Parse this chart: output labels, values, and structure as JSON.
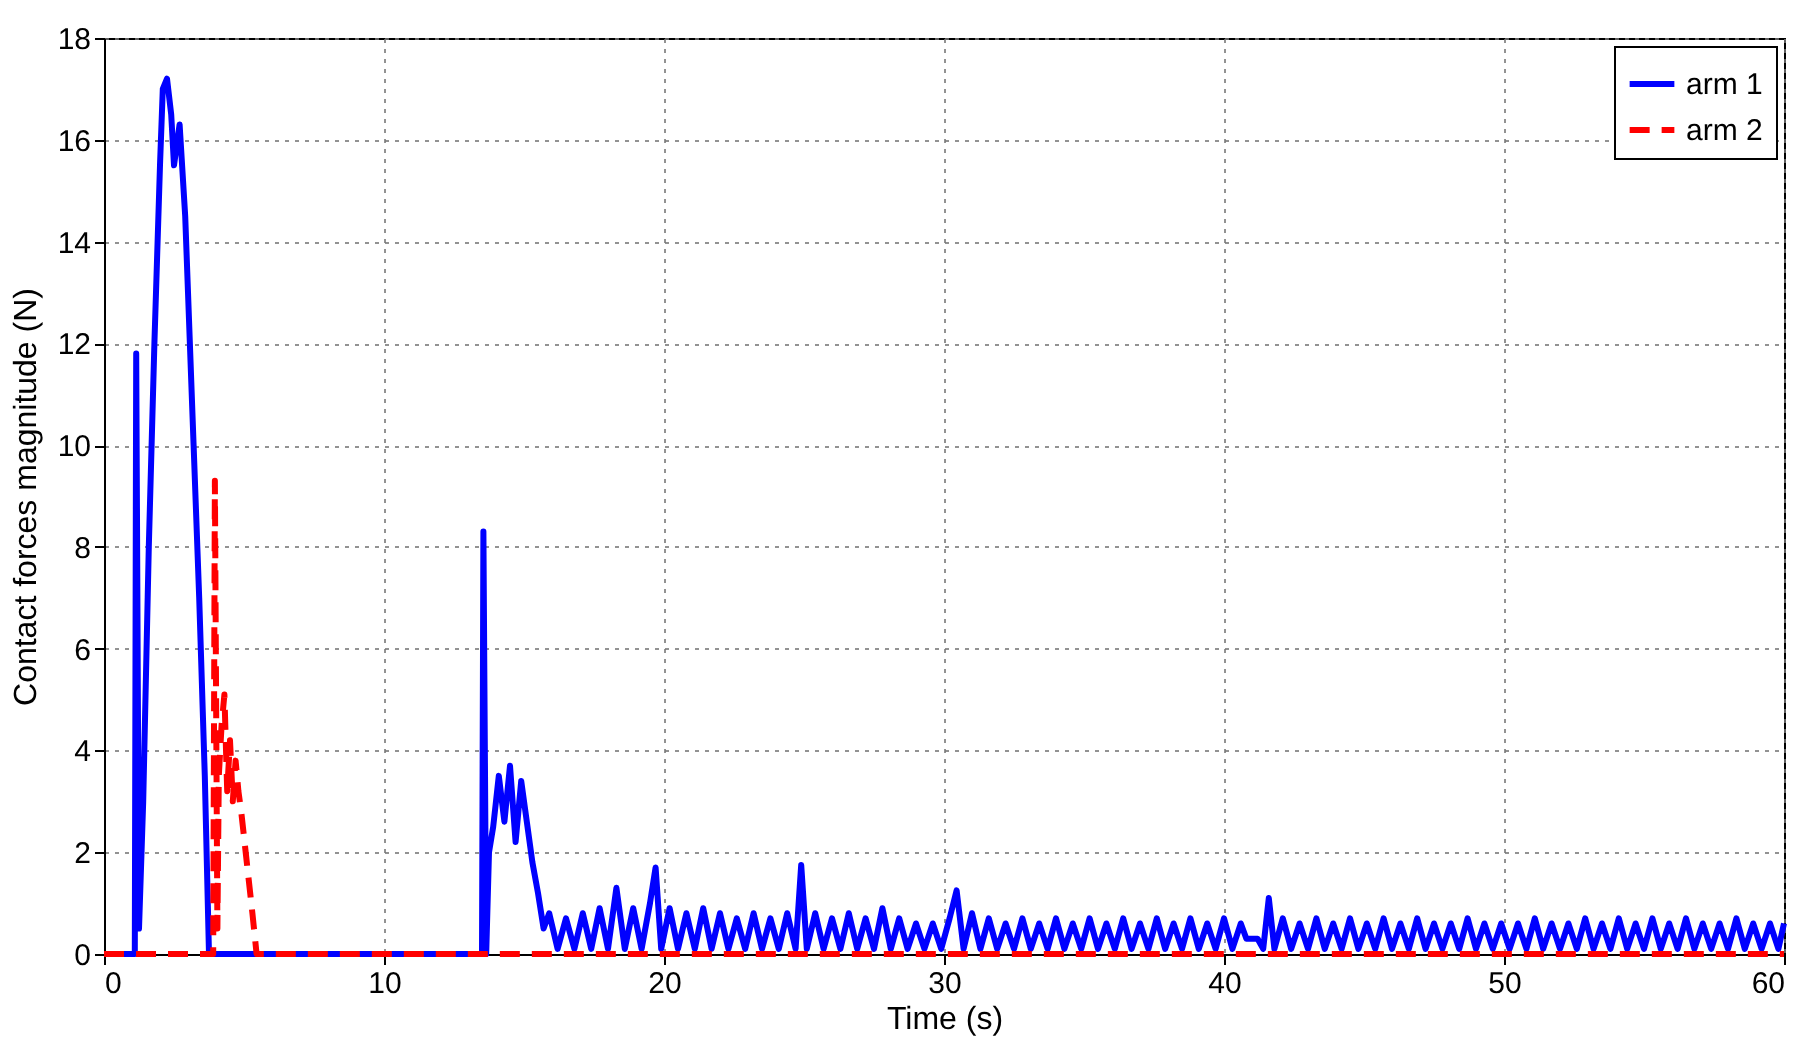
{
  "chart_data": {
    "type": "line",
    "xlabel": "Time (s)",
    "ylabel": "Contact forces magnitude (N)",
    "xlim": [
      0,
      60
    ],
    "xticks": [
      0,
      10,
      20,
      30,
      40,
      50,
      60
    ],
    "ylim": [
      0,
      18
    ],
    "yticks": [
      0,
      2,
      4,
      6,
      8,
      10,
      12,
      14,
      16,
      18
    ],
    "grid": true,
    "legend": "top right",
    "series": [
      {
        "name": "arm 1",
        "color": "#0000ff",
        "line_style": "solid",
        "x": [
          0,
          1.1,
          1.15,
          1.25,
          1.4,
          1.6,
          1.8,
          2.0,
          2.1,
          2.25,
          2.4,
          2.5,
          2.7,
          2.9,
          3.0,
          3.2,
          3.4,
          3.6,
          3.75,
          13.5,
          13.55,
          13.65,
          13.75,
          13.9,
          14.1,
          14.3,
          14.5,
          14.7,
          14.9,
          15.1,
          15.3,
          15.5,
          15.7,
          15.9,
          16.2,
          16.5,
          16.8,
          17.1,
          17.4,
          17.7,
          18.0,
          18.3,
          18.6,
          18.9,
          19.2,
          19.5,
          19.7,
          19.9,
          20.2,
          20.5,
          20.8,
          21.1,
          21.4,
          21.7,
          22.0,
          22.3,
          22.6,
          22.9,
          23.2,
          23.5,
          23.8,
          24.1,
          24.4,
          24.7,
          24.9,
          25.1,
          25.4,
          25.7,
          26.0,
          26.3,
          26.6,
          26.9,
          27.2,
          27.5,
          27.8,
          28.1,
          28.4,
          28.7,
          29.0,
          29.3,
          29.6,
          29.9,
          30.2,
          30.45,
          30.7,
          31.0,
          31.3,
          31.6,
          31.9,
          32.2,
          32.5,
          32.8,
          33.1,
          33.4,
          33.7,
          34.0,
          34.3,
          34.6,
          34.9,
          35.2,
          35.5,
          35.8,
          36.1,
          36.4,
          36.7,
          37.0,
          37.3,
          37.6,
          37.9,
          38.2,
          38.5,
          38.8,
          39.1,
          39.4,
          39.7,
          40.0,
          40.3,
          40.6,
          40.8,
          41.2,
          41.4,
          41.6,
          41.8,
          42.1,
          42.4,
          42.7,
          43.0,
          43.3,
          43.6,
          43.9,
          44.2,
          44.5,
          44.8,
          45.1,
          45.4,
          45.7,
          46.0,
          46.3,
          46.6,
          46.9,
          47.2,
          47.5,
          47.8,
          48.1,
          48.4,
          48.7,
          49.0,
          49.3,
          49.6,
          49.9,
          50.2,
          50.5,
          50.8,
          51.1,
          51.4,
          51.7,
          52.0,
          52.3,
          52.6,
          52.9,
          53.2,
          53.5,
          53.8,
          54.1,
          54.4,
          54.7,
          55.0,
          55.3,
          55.6,
          55.9,
          56.2,
          56.5,
          56.8,
          57.1,
          57.4,
          57.7,
          58.0,
          58.3,
          58.6,
          58.9,
          59.2,
          59.5,
          59.8,
          60
        ],
        "values": [
          0,
          0,
          11.8,
          0.5,
          3,
          8,
          12,
          15.5,
          17,
          17.2,
          16.5,
          15.5,
          16.3,
          14.5,
          13,
          10,
          7,
          3.5,
          0,
          0,
          8.3,
          0,
          2,
          2.5,
          3.5,
          2.6,
          3.7,
          2.2,
          3.4,
          2.6,
          1.8,
          1.2,
          0.5,
          0.8,
          0.1,
          0.7,
          0.1,
          0.8,
          0.1,
          0.9,
          0.1,
          1.3,
          0.1,
          0.9,
          0.1,
          1.0,
          1.7,
          0.1,
          0.9,
          0.1,
          0.8,
          0.1,
          0.9,
          0.1,
          0.8,
          0.1,
          0.7,
          0.1,
          0.8,
          0.1,
          0.7,
          0.1,
          0.8,
          0.1,
          1.75,
          0.1,
          0.8,
          0.1,
          0.7,
          0.1,
          0.8,
          0.1,
          0.7,
          0.1,
          0.9,
          0.1,
          0.7,
          0.1,
          0.6,
          0.1,
          0.6,
          0.1,
          0.7,
          1.25,
          0.1,
          0.8,
          0.1,
          0.7,
          0.1,
          0.6,
          0.1,
          0.7,
          0.1,
          0.6,
          0.1,
          0.7,
          0.1,
          0.6,
          0.1,
          0.7,
          0.1,
          0.6,
          0.1,
          0.7,
          0.1,
          0.6,
          0.1,
          0.7,
          0.1,
          0.6,
          0.1,
          0.7,
          0.1,
          0.6,
          0.1,
          0.7,
          0.1,
          0.6,
          0.3,
          0.3,
          0.1,
          1.1,
          0.1,
          0.7,
          0.1,
          0.6,
          0.1,
          0.7,
          0.1,
          0.6,
          0.1,
          0.7,
          0.1,
          0.6,
          0.1,
          0.7,
          0.1,
          0.6,
          0.1,
          0.7,
          0.1,
          0.6,
          0.1,
          0.6,
          0.1,
          0.7,
          0.1,
          0.6,
          0.1,
          0.6,
          0.1,
          0.6,
          0.1,
          0.7,
          0.1,
          0.6,
          0.1,
          0.6,
          0.1,
          0.7,
          0.1,
          0.6,
          0.1,
          0.7,
          0.1,
          0.6,
          0.1,
          0.7,
          0.1,
          0.6,
          0.1,
          0.7,
          0.1,
          0.6,
          0.1,
          0.6,
          0.1,
          0.7,
          0.1,
          0.6,
          0.1,
          0.6,
          0.1,
          0.6
        ]
      },
      {
        "name": "arm 2",
        "color": "#ff0000",
        "line_style": "dashed",
        "x": [
          0,
          3.9,
          3.96,
          4.05,
          4.1,
          4.2,
          4.3,
          4.4,
          4.5,
          4.6,
          4.7,
          4.8,
          4.9,
          5.1,
          5.3,
          5.45,
          60
        ],
        "values": [
          0,
          0,
          9.3,
          0.5,
          3.5,
          4.5,
          5.1,
          3.2,
          4.2,
          3,
          3.8,
          3.2,
          2.8,
          1.8,
          0.8,
          0,
          0
        ]
      }
    ]
  }
}
